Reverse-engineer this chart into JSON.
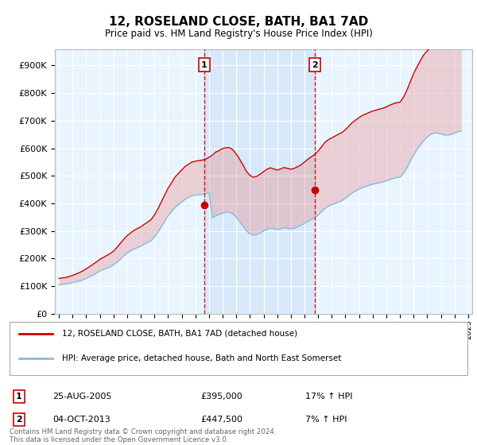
{
  "title": "12, ROSELAND CLOSE, BATH, BA1 7AD",
  "subtitle": "Price paid vs. HM Land Registry's House Price Index (HPI)",
  "ylabel_ticks": [
    "£0",
    "£100K",
    "£200K",
    "£300K",
    "£400K",
    "£500K",
    "£600K",
    "£700K",
    "£800K",
    "£900K"
  ],
  "ylim": [
    0,
    960000
  ],
  "xlim_start": 1994.7,
  "xlim_end": 2025.3,
  "sale1_year": 2005.646,
  "sale1_price": 395000,
  "sale1_label": "1",
  "sale2_year": 2013.751,
  "sale2_price": 447500,
  "sale2_label": "2",
  "line_color_red": "#cc0000",
  "line_color_blue": "#88bbdd",
  "fill_color_red": "#e88888",
  "fill_color_blue": "#bbddee",
  "vline_color": "#cc0000",
  "background_plot": "#e8f4ff",
  "background_fig": "#ffffff",
  "grid_color": "#ffffff",
  "legend_label1": "12, ROSELAND CLOSE, BATH, BA1 7AD (detached house)",
  "legend_label2": "HPI: Average price, detached house, Bath and North East Somerset",
  "table_row1": [
    "1",
    "25-AUG-2005",
    "£395,000",
    "17% ↑ HPI"
  ],
  "table_row2": [
    "2",
    "04-OCT-2013",
    "£447,500",
    "7% ↑ HPI"
  ],
  "footer": "Contains HM Land Registry data © Crown copyright and database right 2024.\nThis data is licensed under the Open Government Licence v3.0.",
  "hpi_years": [
    1995.0,
    1995.25,
    1995.5,
    1995.75,
    1996.0,
    1996.25,
    1996.5,
    1996.75,
    1997.0,
    1997.25,
    1997.5,
    1997.75,
    1998.0,
    1998.25,
    1998.5,
    1998.75,
    1999.0,
    1999.25,
    1999.5,
    1999.75,
    2000.0,
    2000.25,
    2000.5,
    2000.75,
    2001.0,
    2001.25,
    2001.5,
    2001.75,
    2002.0,
    2002.25,
    2002.5,
    2002.75,
    2003.0,
    2003.25,
    2003.5,
    2003.75,
    2004.0,
    2004.25,
    2004.5,
    2004.75,
    2005.0,
    2005.25,
    2005.5,
    2005.75,
    2006.0,
    2006.25,
    2006.5,
    2006.75,
    2007.0,
    2007.25,
    2007.5,
    2007.75,
    2008.0,
    2008.25,
    2008.5,
    2008.75,
    2009.0,
    2009.25,
    2009.5,
    2009.75,
    2010.0,
    2010.25,
    2010.5,
    2010.75,
    2011.0,
    2011.25,
    2011.5,
    2011.75,
    2012.0,
    2012.25,
    2012.5,
    2012.75,
    2013.0,
    2013.25,
    2013.5,
    2013.75,
    2014.0,
    2014.25,
    2014.5,
    2014.75,
    2015.0,
    2015.25,
    2015.5,
    2015.75,
    2016.0,
    2016.25,
    2016.5,
    2016.75,
    2017.0,
    2017.25,
    2017.5,
    2017.75,
    2018.0,
    2018.25,
    2018.5,
    2018.75,
    2019.0,
    2019.25,
    2019.5,
    2019.75,
    2020.0,
    2020.25,
    2020.5,
    2020.75,
    2021.0,
    2021.25,
    2021.5,
    2021.75,
    2022.0,
    2022.25,
    2022.5,
    2022.75,
    2023.0,
    2023.25,
    2023.5,
    2023.75,
    2024.0,
    2024.25,
    2024.5
  ],
  "hpi_values": [
    105000,
    107000,
    108000,
    110000,
    113000,
    116000,
    119000,
    122000,
    128000,
    134000,
    140000,
    148000,
    155000,
    160000,
    165000,
    170000,
    177000,
    187000,
    198000,
    210000,
    220000,
    228000,
    235000,
    240000,
    245000,
    252000,
    258000,
    265000,
    278000,
    295000,
    315000,
    335000,
    355000,
    370000,
    385000,
    395000,
    405000,
    415000,
    422000,
    428000,
    430000,
    432000,
    433000,
    435000,
    440000,
    348000,
    355000,
    360000,
    365000,
    368000,
    368000,
    362000,
    350000,
    335000,
    318000,
    300000,
    290000,
    285000,
    287000,
    293000,
    300000,
    307000,
    310000,
    308000,
    305000,
    308000,
    312000,
    310000,
    308000,
    310000,
    315000,
    320000,
    328000,
    335000,
    342000,
    348000,
    358000,
    370000,
    382000,
    390000,
    396000,
    400000,
    405000,
    410000,
    418000,
    428000,
    438000,
    445000,
    452000,
    458000,
    462000,
    466000,
    470000,
    472000,
    475000,
    478000,
    482000,
    486000,
    490000,
    494000,
    495000,
    508000,
    528000,
    552000,
    575000,
    595000,
    612000,
    628000,
    640000,
    650000,
    655000,
    655000,
    652000,
    648000,
    648000,
    650000,
    655000,
    660000,
    662000
  ],
  "red_years": [
    1995.0,
    1995.25,
    1995.5,
    1995.75,
    1996.0,
    1996.25,
    1996.5,
    1996.75,
    1997.0,
    1997.25,
    1997.5,
    1997.75,
    1998.0,
    1998.25,
    1998.5,
    1998.75,
    1999.0,
    1999.25,
    1999.5,
    1999.75,
    2000.0,
    2000.25,
    2000.5,
    2000.75,
    2001.0,
    2001.25,
    2001.5,
    2001.75,
    2002.0,
    2002.25,
    2002.5,
    2002.75,
    2003.0,
    2003.25,
    2003.5,
    2003.75,
    2004.0,
    2004.25,
    2004.5,
    2004.75,
    2005.0,
    2005.25,
    2005.5,
    2005.75,
    2006.0,
    2006.25,
    2006.5,
    2006.75,
    2007.0,
    2007.25,
    2007.5,
    2007.75,
    2008.0,
    2008.25,
    2008.5,
    2008.75,
    2009.0,
    2009.25,
    2009.5,
    2009.75,
    2010.0,
    2010.25,
    2010.5,
    2010.75,
    2011.0,
    2011.25,
    2011.5,
    2011.75,
    2012.0,
    2012.25,
    2012.5,
    2012.75,
    2013.0,
    2013.25,
    2013.5,
    2013.75,
    2014.0,
    2014.25,
    2014.5,
    2014.75,
    2015.0,
    2015.25,
    2015.5,
    2015.75,
    2016.0,
    2016.25,
    2016.5,
    2016.75,
    2017.0,
    2017.25,
    2017.5,
    2017.75,
    2018.0,
    2018.25,
    2018.5,
    2018.75,
    2019.0,
    2019.25,
    2019.5,
    2019.75,
    2020.0,
    2020.25,
    2020.5,
    2020.75,
    2021.0,
    2021.25,
    2021.5,
    2021.75,
    2022.0,
    2022.25,
    2022.5,
    2022.75,
    2023.0,
    2023.25,
    2023.5,
    2023.75,
    2024.0,
    2024.25,
    2024.5
  ],
  "red_values": [
    128000,
    130000,
    131000,
    135000,
    139000,
    144000,
    149000,
    155000,
    163000,
    171000,
    179000,
    188000,
    197000,
    204000,
    211000,
    218000,
    227000,
    240000,
    255000,
    270000,
    283000,
    293000,
    302000,
    309000,
    315000,
    324000,
    332000,
    341000,
    358000,
    380000,
    405000,
    430000,
    455000,
    474000,
    495000,
    508000,
    521000,
    534000,
    542000,
    550000,
    553000,
    555000,
    557000,
    560000,
    567000,
    575000,
    586000,
    592000,
    599000,
    602000,
    602000,
    595000,
    579000,
    560000,
    539000,
    516000,
    502000,
    495000,
    498000,
    506000,
    515000,
    524000,
    529000,
    525000,
    521000,
    525000,
    530000,
    527000,
    524000,
    527000,
    533000,
    540000,
    550000,
    560000,
    569000,
    577000,
    590000,
    605000,
    621000,
    631000,
    638000,
    644000,
    651000,
    657000,
    667000,
    680000,
    693000,
    702000,
    711000,
    719000,
    724000,
    730000,
    735000,
    738000,
    742000,
    745000,
    750000,
    756000,
    761000,
    765000,
    767000,
    784000,
    809000,
    840000,
    870000,
    895000,
    918000,
    939000,
    953000,
    966000,
    972000,
    972000,
    968000,
    963000,
    963000,
    967000,
    972000,
    979000,
    982000
  ]
}
